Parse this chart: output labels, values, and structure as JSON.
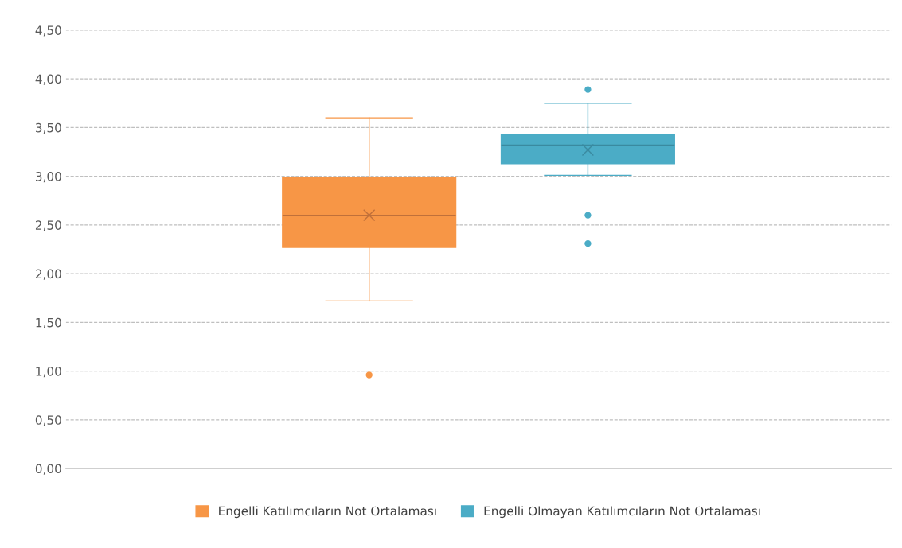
{
  "chart_data": {
    "type": "box",
    "categories": [
      null
    ],
    "series": [
      {
        "name": "Engelli Katılımcıların Not Ortalaması",
        "color": "#f79646",
        "boxes": [
          {
            "low": 1.72,
            "q1": 2.27,
            "median": 2.6,
            "q3": 2.99,
            "high": 3.6,
            "mean": 2.6,
            "outliers": [
              0.96
            ]
          }
        ]
      },
      {
        "name": "Engelli Olmayan Katılımcıların Not Ortalaması",
        "color": "#4bacc6",
        "boxes": [
          {
            "low": 3.01,
            "q1": 3.13,
            "median": 3.32,
            "q3": 3.43,
            "high": 3.75,
            "mean": 3.27,
            "outliers": [
              3.89,
              2.6,
              2.31
            ]
          }
        ]
      }
    ],
    "ylim": [
      0,
      4.5
    ],
    "yticks": [
      {
        "value": 0,
        "label": "0,00"
      },
      {
        "value": 0.5,
        "label": "0,50"
      },
      {
        "value": 1,
        "label": "1,00"
      },
      {
        "value": 1.5,
        "label": "1,50"
      },
      {
        "value": 2,
        "label": "2,00"
      },
      {
        "value": 2.5,
        "label": "2,50"
      },
      {
        "value": 3,
        "label": "3,00"
      },
      {
        "value": 3.5,
        "label": "3,50"
      },
      {
        "value": 4,
        "label": "4,00"
      },
      {
        "value": 4.5,
        "label": "4,50"
      }
    ],
    "grid": "y",
    "legend": "bottom",
    "tick_labels": "y"
  }
}
